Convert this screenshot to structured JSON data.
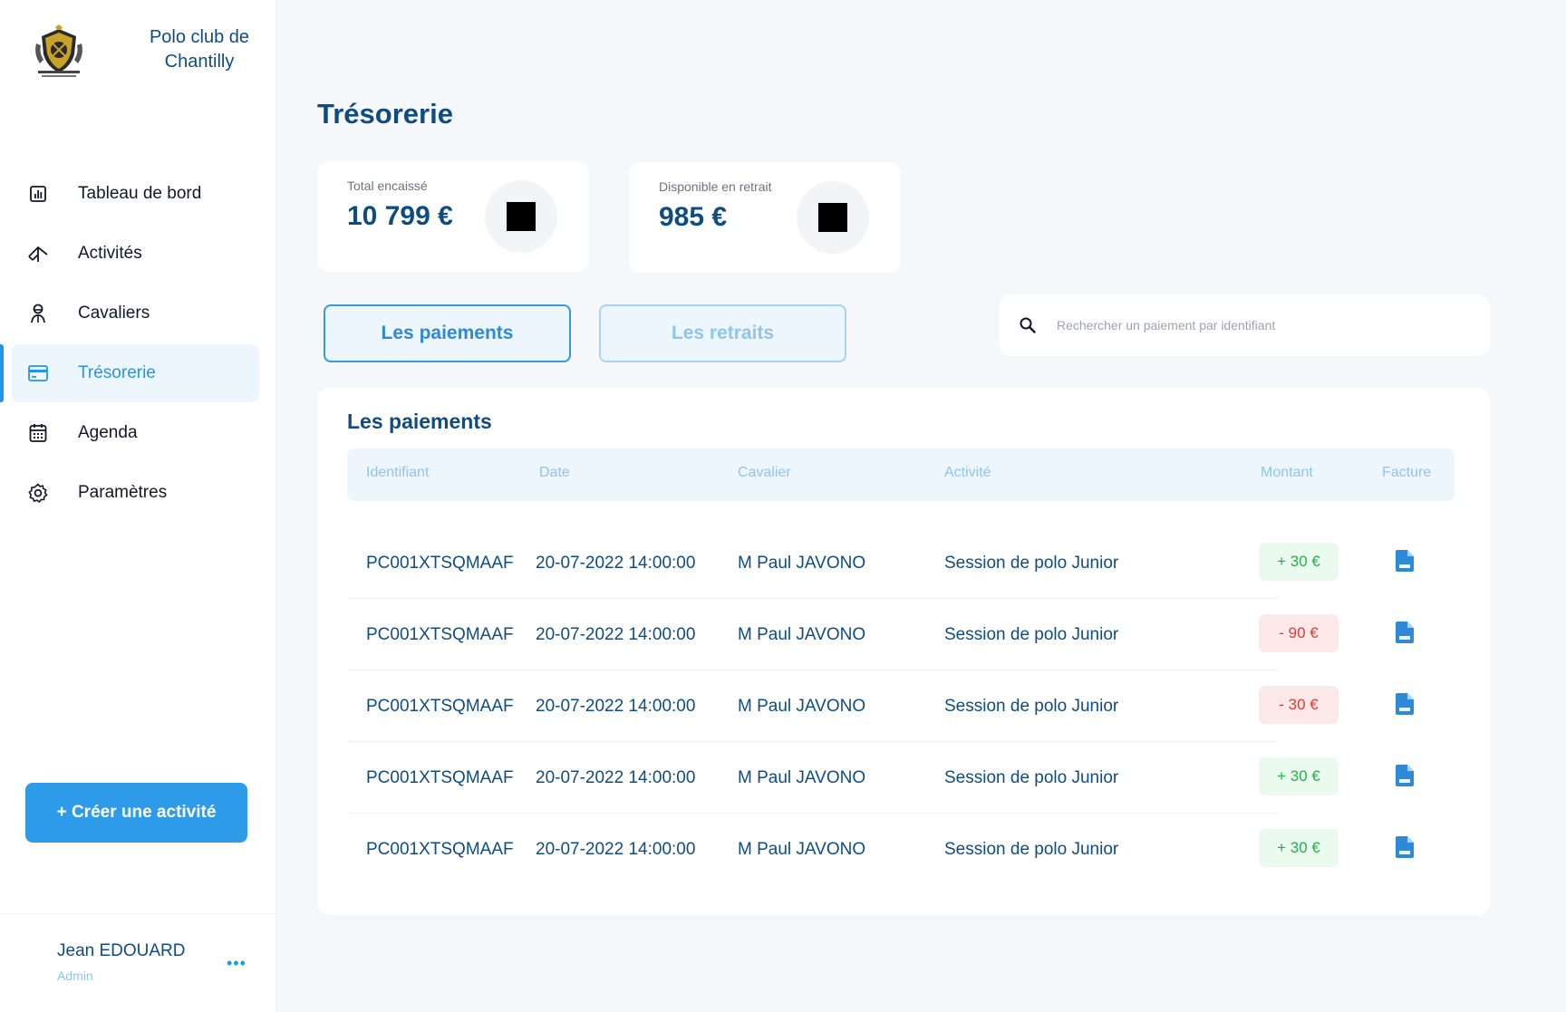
{
  "brand": {
    "name": "Polo club de Chantilly",
    "logo_icon": "polo-club-crest-icon"
  },
  "nav": {
    "items": [
      {
        "label": "Tableau de bord",
        "icon": "bar-chart-icon"
      },
      {
        "label": "Activités",
        "icon": "tent-icon"
      },
      {
        "label": "Cavaliers",
        "icon": "rider-icon"
      },
      {
        "label": "Trésorerie",
        "icon": "credit-card-icon"
      },
      {
        "label": "Agenda",
        "icon": "calendar-icon"
      },
      {
        "label": "Paramètres",
        "icon": "gear-icon"
      }
    ],
    "active_index": 3
  },
  "create_button": {
    "label": "+ Créer une activité"
  },
  "user": {
    "name": "Jean EDOUARD",
    "role": "Admin",
    "more": "•••"
  },
  "page": {
    "title": "Trésorerie"
  },
  "stats": [
    {
      "label": "Total encaissé",
      "value": "10 799 €"
    },
    {
      "label": "Disponible en retrait",
      "value": "985 €"
    }
  ],
  "tabs": {
    "payments": "Les paiements",
    "withdrawals": "Les retraits",
    "active": "payments"
  },
  "search": {
    "placeholder": "Rechercher un paiement par identifiant",
    "value": ""
  },
  "table": {
    "title": "Les paiements",
    "columns": [
      "Identifiant",
      "Date",
      "Cavalier",
      "Activité",
      "Montant",
      "Facture"
    ],
    "rows": [
      {
        "id": "PC001XTSQMAAF",
        "date": "20-07-2022 14:00:00",
        "rider": "M Paul JAVONO",
        "activity": "Session de polo Junior",
        "amount": "+ 30 €",
        "type": "pos"
      },
      {
        "id": "PC001XTSQMAAF",
        "date": "20-07-2022 14:00:00",
        "rider": "M Paul JAVONO",
        "activity": "Session de polo Junior",
        "amount": "- 90 €",
        "type": "neg"
      },
      {
        "id": "PC001XTSQMAAF",
        "date": "20-07-2022 14:00:00",
        "rider": "M Paul JAVONO",
        "activity": "Session de polo Junior",
        "amount": "- 30 €",
        "type": "neg"
      },
      {
        "id": "PC001XTSQMAAF",
        "date": "20-07-2022 14:00:00",
        "rider": "M Paul JAVONO",
        "activity": "Session de polo Junior",
        "amount": "+ 30 €",
        "type": "pos"
      },
      {
        "id": "PC001XTSQMAAF",
        "date": "20-07-2022 14:00:00",
        "rider": "M Paul JAVONO",
        "activity": "Session de polo Junior",
        "amount": "+ 30 €",
        "type": "pos"
      }
    ]
  },
  "colors": {
    "primary": "#2e9be9",
    "navy": "#0f4c81",
    "light_blue": "#8ec5ef",
    "positive_bg": "#eafaee",
    "positive_text": "#22b14c",
    "negative_bg": "#fde8e8",
    "negative_text": "#e53935",
    "background": "#f5f7fa"
  }
}
